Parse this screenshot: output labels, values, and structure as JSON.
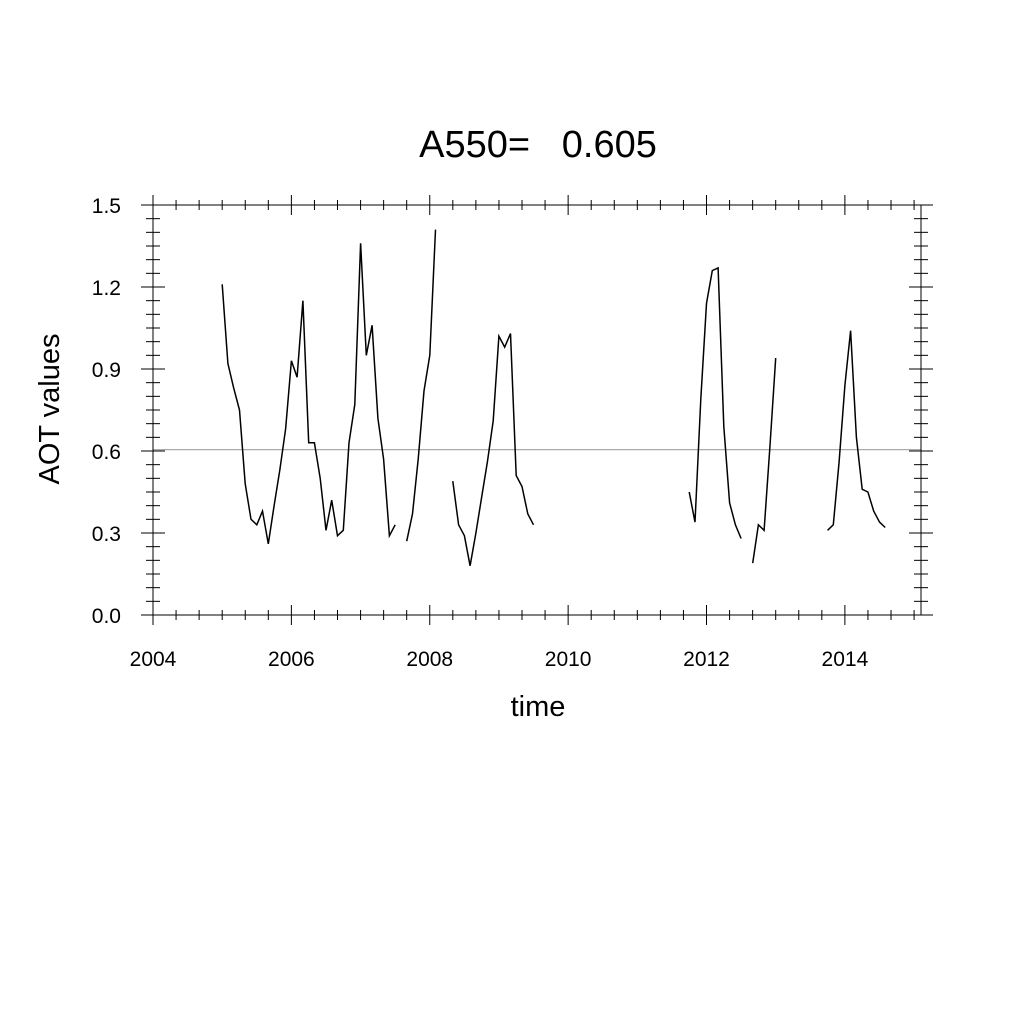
{
  "chart_data": {
    "type": "line",
    "title": "A550=   0.605",
    "xlabel": "time",
    "ylabel": "AOT values",
    "xlim": [
      2004,
      2015.1
    ],
    "ylim": [
      0.0,
      1.5
    ],
    "x_ticks": [
      "2004",
      "2006",
      "2008",
      "2010",
      "2012",
      "2014"
    ],
    "y_ticks": [
      "0.0",
      "0.3",
      "0.6",
      "0.9",
      "1.2",
      "1.5"
    ],
    "reference_line": {
      "value": 0.605,
      "color": "#aaaaaa"
    },
    "series_color": "#000000",
    "segments": [
      {
        "x": [
          2005.0,
          2005.083,
          2005.167,
          2005.25,
          2005.333,
          2005.417,
          2005.5,
          2005.583,
          2005.667,
          2005.75,
          2005.833,
          2005.917,
          2006.0,
          2006.083,
          2006.167,
          2006.25,
          2006.333,
          2006.417,
          2006.5,
          2006.583,
          2006.667,
          2006.75,
          2006.833,
          2006.917,
          2007.0,
          2007.083,
          2007.167,
          2007.25,
          2007.333,
          2007.417,
          2007.5
        ],
        "y": [
          1.21,
          0.92,
          0.83,
          0.75,
          0.48,
          0.35,
          0.33,
          0.38,
          0.26,
          0.4,
          0.53,
          0.68,
          0.93,
          0.87,
          1.15,
          0.63,
          0.63,
          0.5,
          0.31,
          0.42,
          0.29,
          0.31,
          0.63,
          0.77,
          1.36,
          0.95,
          1.06,
          0.72,
          0.57,
          0.29,
          0.33
        ]
      },
      {
        "x": [
          2007.667,
          2007.75,
          2007.833,
          2007.917,
          2008.0,
          2008.083
        ],
        "y": [
          0.27,
          0.37,
          0.57,
          0.82,
          0.95,
          1.41
        ]
      },
      {
        "x": [
          2008.333,
          2008.417,
          2008.5,
          2008.583,
          2008.667,
          2008.75,
          2008.833,
          2008.917,
          2009.0,
          2009.083,
          2009.167,
          2009.25,
          2009.333,
          2009.417,
          2009.5
        ],
        "y": [
          0.49,
          0.33,
          0.29,
          0.18,
          0.3,
          0.43,
          0.56,
          0.71,
          1.02,
          0.98,
          1.03,
          0.51,
          0.47,
          0.37,
          0.33
        ]
      },
      {
        "x": [
          2011.75,
          2011.833,
          2011.917,
          2012.0,
          2012.083,
          2012.167,
          2012.25,
          2012.333,
          2012.417,
          2012.5
        ],
        "y": [
          0.45,
          0.34,
          0.79,
          1.14,
          1.26,
          1.27,
          0.69,
          0.41,
          0.33,
          0.28
        ]
      },
      {
        "x": [
          2012.667,
          2012.75,
          2012.833,
          2012.917,
          2013.0
        ],
        "y": [
          0.19,
          0.33,
          0.31,
          0.62,
          0.94
        ]
      },
      {
        "x": [
          2013.75,
          2013.833,
          2013.917,
          2014.0,
          2014.083,
          2014.167,
          2014.25,
          2014.333,
          2014.417,
          2014.5,
          2014.583
        ],
        "y": [
          0.31,
          0.33,
          0.56,
          0.84,
          1.04,
          0.65,
          0.46,
          0.45,
          0.38,
          0.34,
          0.32
        ]
      }
    ]
  }
}
